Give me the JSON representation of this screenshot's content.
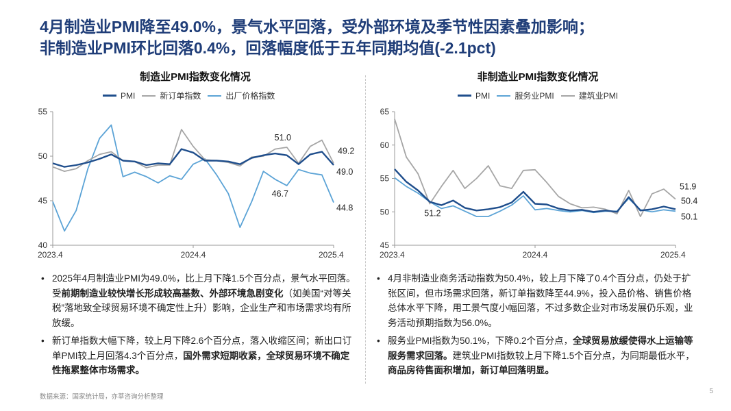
{
  "title_line1": "4月制造业PMI降至49.0%，景气水平回落，受外部环境及季节性因素叠加影响；",
  "title_line2": "非制造业PMI环比回落0.4%，回落幅度低于五年同期均值(-2.1pct)",
  "chart_data": [
    {
      "type": "line",
      "title": "制造业PMI指数变化情况",
      "categories": [
        "2023.4",
        "2023.5",
        "2023.6",
        "2023.7",
        "2023.8",
        "2023.9",
        "2023.10",
        "2023.11",
        "2023.12",
        "2024.1",
        "2024.2",
        "2024.3",
        "2024.4",
        "2024.5",
        "2024.6",
        "2024.7",
        "2024.8",
        "2024.9",
        "2024.10",
        "2024.11",
        "2024.12",
        "2025.1",
        "2025.2",
        "2025.3",
        "2025.4"
      ],
      "x_tick_labels": [
        "2023.4",
        "2024.4",
        "2025.4"
      ],
      "ylim": [
        40,
        55
      ],
      "yticks": [
        40,
        45,
        50,
        55
      ],
      "series": [
        {
          "name": "PMI",
          "color": "#1f4e8c",
          "width": 2.4,
          "values": [
            49.2,
            48.8,
            49.0,
            49.3,
            49.7,
            50.2,
            49.5,
            49.4,
            49.0,
            49.2,
            49.1,
            50.8,
            50.4,
            49.5,
            49.5,
            49.4,
            49.1,
            49.8,
            50.1,
            50.3,
            50.1,
            49.1,
            50.2,
            50.5,
            49.0
          ]
        },
        {
          "name": "新订单指数",
          "color": "#a6a6a6",
          "width": 1.8,
          "values": [
            48.8,
            48.3,
            48.6,
            49.5,
            50.2,
            50.5,
            49.5,
            49.4,
            48.7,
            49.0,
            49.0,
            53.0,
            51.1,
            49.6,
            49.5,
            49.3,
            48.9,
            49.9,
            50.0,
            50.8,
            51.0,
            49.2,
            51.1,
            51.8,
            49.2
          ]
        },
        {
          "name": "出厂价格指数",
          "color": "#5ba3d6",
          "width": 1.8,
          "values": [
            44.9,
            41.6,
            43.9,
            48.6,
            52.0,
            53.5,
            47.7,
            48.2,
            47.7,
            47.0,
            47.8,
            47.4,
            49.1,
            49.7,
            47.9,
            45.8,
            42.0,
            44.9,
            48.3,
            47.4,
            46.7,
            48.5,
            48.1,
            47.9,
            44.8
          ]
        }
      ],
      "annotations": [
        {
          "text": "51.0",
          "index": 20,
          "series": "新订单指数"
        },
        {
          "text": "49.2",
          "index": 24,
          "series": "新订单指数"
        },
        {
          "text": "49.0",
          "index": 24,
          "series": "PMI"
        },
        {
          "text": "46.7",
          "index": 20,
          "series": "出厂价格指数"
        },
        {
          "text": "44.8",
          "index": 24,
          "series": "出厂价格指数"
        }
      ]
    },
    {
      "type": "line",
      "title": "非制造业PMI指数变化情况",
      "categories": [
        "2023.4",
        "2023.5",
        "2023.6",
        "2023.7",
        "2023.8",
        "2023.9",
        "2023.10",
        "2023.11",
        "2023.12",
        "2024.1",
        "2024.2",
        "2024.3",
        "2024.4",
        "2024.5",
        "2024.6",
        "2024.7",
        "2024.8",
        "2024.9",
        "2024.10",
        "2024.11",
        "2024.12",
        "2025.1",
        "2025.2",
        "2025.3",
        "2025.4"
      ],
      "x_tick_labels": [
        "2023.4",
        "2024.4",
        "2025.4"
      ],
      "ylim": [
        45,
        65
      ],
      "yticks": [
        45,
        50,
        55,
        60,
        65
      ],
      "series": [
        {
          "name": "PMI",
          "color": "#1f4e8c",
          "width": 2.4,
          "values": [
            56.4,
            54.5,
            53.2,
            51.5,
            51.0,
            51.7,
            50.6,
            50.2,
            50.4,
            50.7,
            51.4,
            53.0,
            51.2,
            51.1,
            50.5,
            50.2,
            50.3,
            50.0,
            50.2,
            50.0,
            52.2,
            50.2,
            50.4,
            50.8,
            50.4
          ]
        },
        {
          "name": "服务业PMI",
          "color": "#5ba3d6",
          "width": 1.8,
          "values": [
            55.1,
            53.8,
            52.8,
            51.5,
            50.5,
            50.9,
            50.1,
            49.3,
            49.3,
            50.1,
            51.0,
            52.4,
            50.3,
            50.5,
            50.2,
            50.0,
            50.2,
            49.9,
            50.1,
            50.1,
            52.0,
            50.3,
            50.0,
            50.3,
            50.1
          ]
        },
        {
          "name": "建筑业PMI",
          "color": "#a6a6a6",
          "width": 1.8,
          "values": [
            63.9,
            58.2,
            55.7,
            51.2,
            53.8,
            56.2,
            53.5,
            55.0,
            56.9,
            53.9,
            53.5,
            56.2,
            56.3,
            54.4,
            52.3,
            51.2,
            50.6,
            50.7,
            50.4,
            49.7,
            53.2,
            49.3,
            52.7,
            53.4,
            51.9
          ]
        }
      ],
      "annotations": [
        {
          "text": "51.2",
          "index": 3,
          "series": "建筑业PMI"
        },
        {
          "text": "51.9",
          "index": 24,
          "series": "建筑业PMI"
        },
        {
          "text": "50.4",
          "index": 24,
          "series": "PMI"
        },
        {
          "text": "50.1",
          "index": 24,
          "series": "服务业PMI"
        }
      ]
    }
  ],
  "left_bullets": [
    [
      {
        "t": "2025年4月制造业PMI为49.0%，比上月下降1.5个百分点，景气水平回落。受"
      },
      {
        "t": "前期制造业较快增长形成较高基数、外部环境急剧变化",
        "b": true
      },
      {
        "t": "（如美国“对等关税”落地致全球贸易环境不确定性上升）影响，企业生产和市场需求均有所放缓。"
      }
    ],
    [
      {
        "t": "新订单指数大幅下降，较上月下降2.6个百分点，落入收缩区间；新出口订单PMI较上月回落4.3个百分点，"
      },
      {
        "t": "国外需求短期收紧，全球贸易环境不确定性拖累整体市场需求。",
        "b": true
      }
    ]
  ],
  "right_bullets": [
    [
      {
        "t": "4月非制造业商务活动指数为50.4%，较上月下降了0.4个百分点，仍处于扩张区间，但市场需求回落，新订单指数降至44.9%，投入品价格、销售价格总体水平下降，用工景气度小幅回落，不过多数企业对市场发展仍乐观，业务活动预期指数为56.0%。"
      }
    ],
    [
      {
        "t": "服务业PMI指数为50.1%，下降0.2个百分点，"
      },
      {
        "t": "全球贸易放缓使得水上运输等服务需求回落。",
        "b": true
      },
      {
        "t": "建筑业PMI指数较上月下降1.5个百分点，为同期最低水平，"
      },
      {
        "t": "商品房待售面积增加，新订单回落明显。",
        "b": true
      }
    ]
  ],
  "source": "数据来源：国家统计局，亦莘咨询分析整理",
  "page_number": "5"
}
